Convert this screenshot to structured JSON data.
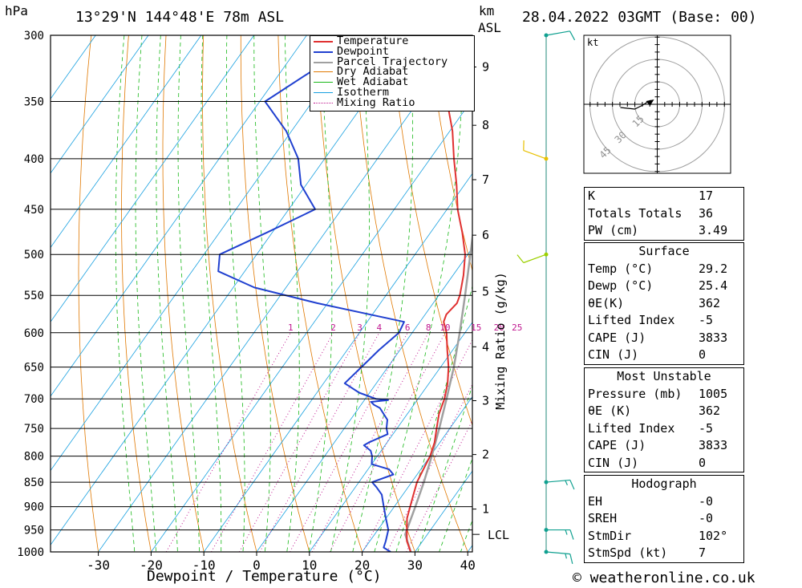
{
  "header": {
    "pressure_unit": "hPa",
    "location": "13°29'N 144°48'E 78m ASL",
    "height_unit_1": "km",
    "height_unit_2": "ASL",
    "datetime": "28.04.2022 03GMT (Base: 00)"
  },
  "footer": {
    "credit": "© weatheronline.co.uk"
  },
  "hodograph": {
    "unit": "kt",
    "ring_labels": [
      "15",
      "30",
      "45"
    ]
  },
  "indices": {
    "top": [
      {
        "label": "K",
        "value": "17"
      },
      {
        "label": "Totals Totals",
        "value": "36"
      },
      {
        "label": "PW (cm)",
        "value": "3.49"
      }
    ],
    "surface_title": "Surface",
    "surface": [
      {
        "label": "Temp (°C)",
        "value": "29.2"
      },
      {
        "label": "Dewp (°C)",
        "value": "25.4"
      },
      {
        "label": "θE(K)",
        "value": "362"
      },
      {
        "label": "Lifted Index",
        "value": "-5"
      },
      {
        "label": "CAPE (J)",
        "value": "3833"
      },
      {
        "label": "CIN (J)",
        "value": "0"
      }
    ],
    "mu_title": "Most Unstable",
    "mu": [
      {
        "label": "Pressure (mb)",
        "value": "1005"
      },
      {
        "label": "θE (K)",
        "value": "362"
      },
      {
        "label": "Lifted Index",
        "value": "-5"
      },
      {
        "label": "CAPE (J)",
        "value": "3833"
      },
      {
        "label": "CIN (J)",
        "value": "0"
      }
    ],
    "hodo_title": "Hodograph",
    "hodo": [
      {
        "label": "EH",
        "value": "-0"
      },
      {
        "label": "SREH",
        "value": "-0"
      },
      {
        "label": "StmDir",
        "value": "102°"
      },
      {
        "label": "StmSpd (kt)",
        "value": "7"
      }
    ]
  },
  "colors": {
    "temperature": "#e03030",
    "dewpoint": "#2040d0",
    "parcel": "#a0a0a0",
    "dry_adiabat": "#e07800",
    "wet_adiabat": "#18b818",
    "isotherm": "#18a0e0",
    "mixing_ratio": "#c01890"
  },
  "chart_data": {
    "type": "line",
    "title": "13°29'N 144°48'E 78m ASL",
    "xlabel": "Dewpoint / Temperature (°C)",
    "ylabel": "hPa",
    "x_ticks": [
      "-30",
      "-20",
      "-10",
      "0",
      "10",
      "20",
      "30",
      "40"
    ],
    "xlim": [
      -40,
      40
    ],
    "pressure_levels": [
      300,
      350,
      400,
      450,
      500,
      550,
      600,
      650,
      700,
      750,
      800,
      850,
      900,
      950,
      1000
    ],
    "km_ticks": [
      {
        "km": "1",
        "p": 905
      },
      {
        "km": "2",
        "p": 797
      },
      {
        "km": "3",
        "p": 703
      },
      {
        "km": "4",
        "p": 620
      },
      {
        "km": "5",
        "p": 545
      },
      {
        "km": "6",
        "p": 478
      },
      {
        "km": "7",
        "p": 420
      },
      {
        "km": "8",
        "p": 370
      },
      {
        "km": "9",
        "p": 323
      }
    ],
    "lcl_label": "LCL",
    "lcl_p": 960,
    "mixing_ratio_axis_label": "Mixing Ratio (g/kg)",
    "mixing_ratio_values": [
      "1",
      "2",
      "3",
      "4",
      "6",
      "8",
      "10",
      "15",
      "20",
      "25"
    ],
    "legend": [
      "Temperature",
      "Dewpoint",
      "Parcel Trajectory",
      "Dry Adiabat",
      "Wet Adiabat",
      "Isotherm",
      "Mixing Ratio"
    ],
    "series": [
      {
        "name": "Temperature",
        "points": [
          [
            1000,
            29.2
          ],
          [
            975,
            27.0
          ],
          [
            950,
            25.5
          ],
          [
            925,
            24.0
          ],
          [
            900,
            23.0
          ],
          [
            875,
            22.0
          ],
          [
            850,
            21.0
          ],
          [
            825,
            20.5
          ],
          [
            800,
            20.0
          ],
          [
            775,
            19.0
          ],
          [
            750,
            17.5
          ],
          [
            725,
            16.0
          ],
          [
            700,
            15.0
          ],
          [
            675,
            13.5
          ],
          [
            650,
            11.5
          ],
          [
            625,
            9.0
          ],
          [
            600,
            6.5
          ],
          [
            585,
            4.5
          ],
          [
            575,
            4.0
          ],
          [
            560,
            4.5
          ],
          [
            550,
            4.0
          ],
          [
            525,
            2.0
          ],
          [
            500,
            -0.5
          ],
          [
            475,
            -4.0
          ],
          [
            450,
            -8.0
          ],
          [
            425,
            -11.5
          ],
          [
            400,
            -15.5
          ],
          [
            375,
            -19.5
          ],
          [
            350,
            -24.5
          ],
          [
            325,
            -29.5
          ],
          [
            300,
            -33.0
          ]
        ]
      },
      {
        "name": "Dewpoint",
        "points": [
          [
            1000,
            25.4
          ],
          [
            990,
            23.5
          ],
          [
            975,
            23.0
          ],
          [
            950,
            22.0
          ],
          [
            925,
            20.0
          ],
          [
            900,
            18.0
          ],
          [
            875,
            16.0
          ],
          [
            860,
            14.0
          ],
          [
            850,
            12.5
          ],
          [
            835,
            15.5
          ],
          [
            825,
            14.0
          ],
          [
            815,
            10.0
          ],
          [
            800,
            9.0
          ],
          [
            790,
            8.0
          ],
          [
            780,
            6.0
          ],
          [
            775,
            6.5
          ],
          [
            760,
            9.0
          ],
          [
            750,
            8.0
          ],
          [
            735,
            7.0
          ],
          [
            715,
            4.0
          ],
          [
            710,
            2.5
          ],
          [
            705,
            1.5
          ],
          [
            702,
            4.5
          ],
          [
            700,
            2.0
          ],
          [
            690,
            -2.0
          ],
          [
            675,
            -6.0
          ],
          [
            650,
            -5.0
          ],
          [
            625,
            -4.0
          ],
          [
            600,
            -2.5
          ],
          [
            585,
            -3.0
          ],
          [
            560,
            -22.0
          ],
          [
            540,
            -36.0
          ],
          [
            520,
            -45.0
          ],
          [
            500,
            -47.0
          ],
          [
            475,
            -41.0
          ],
          [
            450,
            -35.0
          ],
          [
            425,
            -41.0
          ],
          [
            400,
            -45.0
          ],
          [
            375,
            -51.0
          ],
          [
            350,
            -59.0
          ],
          [
            325,
            -54.0
          ],
          [
            310,
            -48.0
          ],
          [
            300,
            -54.0
          ]
        ]
      },
      {
        "name": "Parcel Trajectory",
        "points": [
          [
            1000,
            29.2
          ],
          [
            960,
            25.8
          ],
          [
            950,
            25.5
          ],
          [
            900,
            24.0
          ],
          [
            850,
            22.3
          ],
          [
            800,
            20.3
          ],
          [
            750,
            18.0
          ],
          [
            700,
            15.4
          ],
          [
            650,
            12.5
          ],
          [
            600,
            9.0
          ],
          [
            550,
            5.0
          ],
          [
            500,
            0.5
          ],
          [
            450,
            -4.5
          ],
          [
            400,
            -10.5
          ],
          [
            360,
            -17.0
          ]
        ]
      }
    ],
    "wind_barbs": [
      {
        "p": 1000,
        "dir": 95,
        "spd_kt": 15
      },
      {
        "p": 950,
        "dir": 90,
        "spd_kt": 15
      },
      {
        "p": 850,
        "dir": 85,
        "spd_kt": 15
      },
      {
        "p": 500,
        "dir": 250,
        "spd_kt": 10
      },
      {
        "p": 400,
        "dir": 290,
        "spd_kt": 10
      },
      {
        "p": 300,
        "dir": 80,
        "spd_kt": 10
      }
    ]
  }
}
